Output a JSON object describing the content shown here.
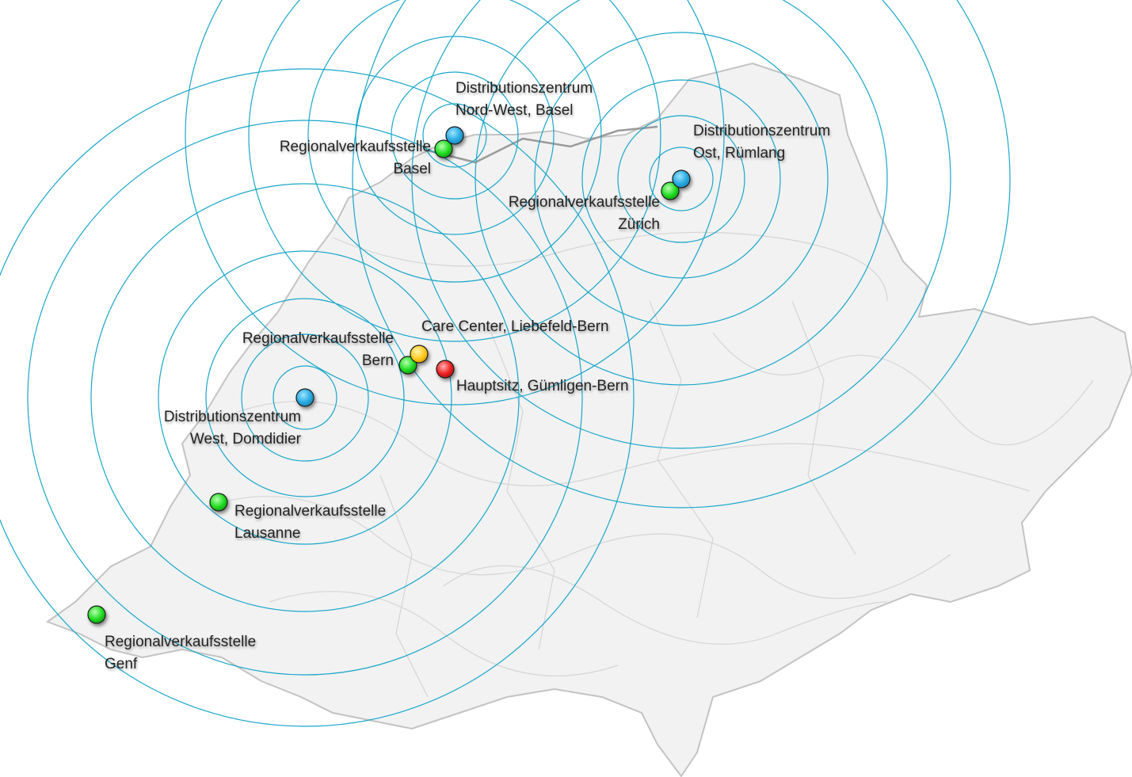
{
  "colors": {
    "distribution": "#29abe2",
    "regional": "#22dd22",
    "care": "#ffcc22",
    "hq": "#ee2222",
    "rings": "#1aa6c9",
    "terrain": "#c8c8c8"
  },
  "locations": [
    {
      "id": "dz-basel",
      "type": "distribution",
      "line1": "Distributionszentrum",
      "line2": "Nord-West, Basel",
      "icon": "blue-marker-icon"
    },
    {
      "id": "rv-basel",
      "type": "regional",
      "line1": "Regionalverkaufsstelle",
      "line2": "Basel",
      "icon": "green-marker-icon"
    },
    {
      "id": "dz-ost",
      "type": "distribution",
      "line1": "Distributionszentrum",
      "line2": "Ost, Rümlang",
      "icon": "blue-marker-icon"
    },
    {
      "id": "rv-zuerich",
      "type": "regional",
      "line1": "Regionalverkaufsstelle",
      "line2": "Zürich",
      "icon": "green-marker-icon"
    },
    {
      "id": "care",
      "type": "care",
      "line1": "Care Center, Liebefeld-Bern",
      "line2": "",
      "icon": "yellow-marker-icon"
    },
    {
      "id": "rv-bern",
      "type": "regional",
      "line1": "Regionalverkaufsstelle",
      "line2": "Bern",
      "icon": "green-marker-icon"
    },
    {
      "id": "hq",
      "type": "hq",
      "line1": "Hauptsitz, Gümligen-Bern",
      "line2": "",
      "icon": "red-marker-icon"
    },
    {
      "id": "dz-west",
      "type": "distribution",
      "line1": "Distributionszentrum",
      "line2": "West, Domdidier",
      "icon": "blue-marker-icon"
    },
    {
      "id": "rv-lausanne",
      "type": "regional",
      "line1": "Regionalverkaufsstelle",
      "line2": "Lausanne",
      "icon": "green-marker-icon"
    },
    {
      "id": "rv-genf",
      "type": "regional",
      "line1": "Regionalverkaufsstelle",
      "line2": "Genf",
      "icon": "green-marker-icon"
    }
  ]
}
